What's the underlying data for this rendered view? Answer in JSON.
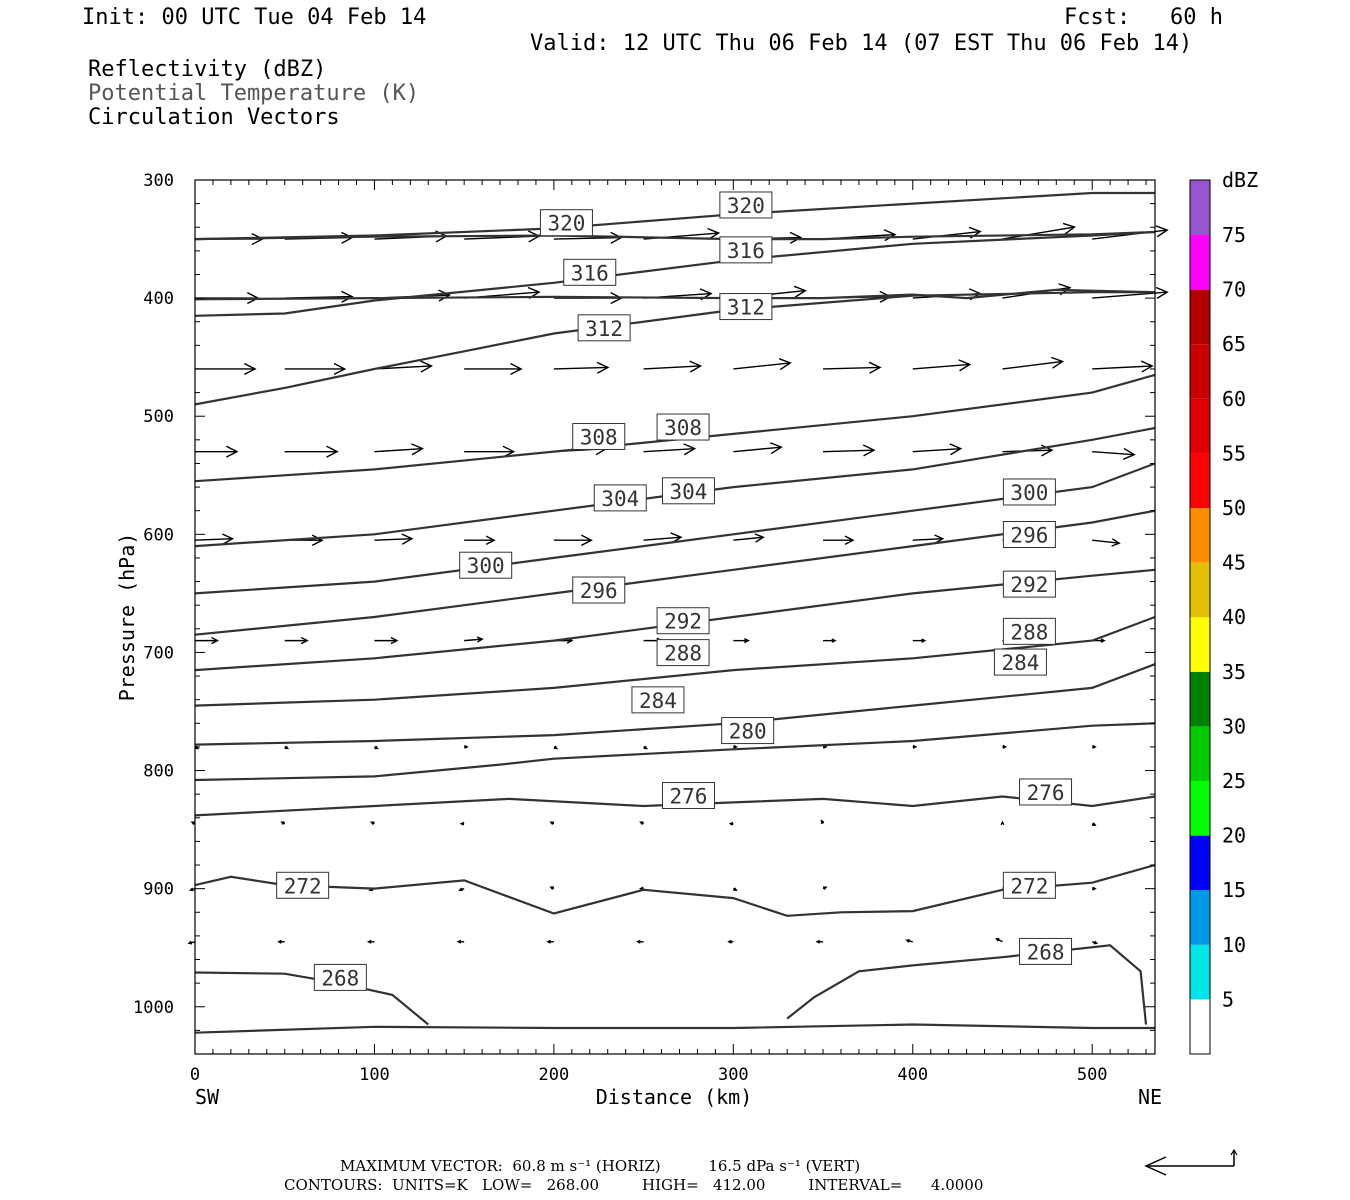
{
  "header": {
    "init": "Init: 00 UTC Tue 04 Feb 14",
    "fcst": "Fcst:   60 h",
    "valid": "Valid: 12 UTC Thu 06 Feb 14 (07 EST Thu 06 Feb 14)"
  },
  "fields": [
    "Reflectivity (dBZ)",
    "Potential Temperature (K)",
    "Circulation Vectors"
  ],
  "colors": {
    "contour": "#333333",
    "frame": "#000000"
  },
  "colorbar": {
    "unit": "dBZ",
    "levels": [
      {
        "label": "5",
        "color": "#00e5e5"
      },
      {
        "label": "10",
        "color": "#0099e5"
      },
      {
        "label": "15",
        "color": "#0000ff"
      },
      {
        "label": "20",
        "color": "#00ff00"
      },
      {
        "label": "25",
        "color": "#00cc00"
      },
      {
        "label": "30",
        "color": "#008000"
      },
      {
        "label": "35",
        "color": "#ffff00"
      },
      {
        "label": "40",
        "color": "#e5bf00"
      },
      {
        "label": "45",
        "color": "#ff8c00"
      },
      {
        "label": "50",
        "color": "#ff0000"
      },
      {
        "label": "55",
        "color": "#e00000"
      },
      {
        "label": "60",
        "color": "#cc0000"
      },
      {
        "label": "65",
        "color": "#b20000"
      },
      {
        "label": "70",
        "color": "#ff00ff"
      },
      {
        "label": "75",
        "color": "#9955cc"
      }
    ]
  },
  "chart_data": {
    "type": "line",
    "xlabel": "Distance (km)",
    "ylabel": "Pressure (hPa)",
    "xlim": [
      0,
      535
    ],
    "ylim": [
      300,
      1040
    ],
    "x_ticks": [
      "0",
      "100",
      "200",
      "300",
      "400",
      "500"
    ],
    "y_ticks": [
      "300",
      "400",
      "500",
      "600",
      "700",
      "800",
      "900",
      "1000"
    ],
    "x_end_labels": {
      "left": "SW",
      "right": "NE"
    },
    "contours": [
      {
        "name": "320",
        "x": [
          0,
          100,
          200,
          300,
          400,
          500,
          535
        ],
        "y": [
          350,
          347,
          341,
          329,
          320,
          311,
          311
        ]
      },
      {
        "name": "316",
        "x": [
          0,
          100,
          200,
          300,
          350,
          400,
          500,
          535
        ],
        "y": [
          350,
          348,
          347,
          350,
          350,
          348,
          346,
          344
        ]
      },
      {
        "name": "316",
        "x": [
          0,
          50,
          100,
          200,
          300,
          400,
          500,
          535
        ],
        "y": [
          415,
          413,
          402,
          387,
          368,
          354,
          347,
          344
        ]
      },
      {
        "name": "312",
        "x": [
          0,
          100,
          200,
          300,
          350,
          400,
          430,
          480,
          535
        ],
        "y": [
          401,
          400,
          399,
          400,
          400,
          397,
          400,
          393,
          395
        ]
      },
      {
        "name": "312",
        "x": [
          0,
          50,
          100,
          150,
          200,
          300,
          400,
          500,
          535
        ],
        "y": [
          490,
          476,
          460,
          445,
          430,
          410,
          398,
          395,
          395
        ]
      },
      {
        "name": "308",
        "x": [
          0,
          100,
          200,
          300,
          400,
          500,
          535
        ],
        "y": [
          555,
          545,
          530,
          515,
          500,
          480,
          465
        ]
      },
      {
        "name": "304",
        "x": [
          0,
          100,
          200,
          300,
          400,
          500,
          535
        ],
        "y": [
          610,
          600,
          580,
          560,
          545,
          520,
          510
        ]
      },
      {
        "name": "300",
        "x": [
          0,
          100,
          200,
          300,
          400,
          500,
          535
        ],
        "y": [
          650,
          640,
          620,
          600,
          580,
          560,
          540
        ]
      },
      {
        "name": "296",
        "x": [
          0,
          100,
          200,
          300,
          400,
          500,
          535
        ],
        "y": [
          685,
          670,
          650,
          630,
          610,
          590,
          580
        ]
      },
      {
        "name": "292",
        "x": [
          0,
          100,
          200,
          300,
          400,
          500,
          535
        ],
        "y": [
          715,
          705,
          690,
          670,
          650,
          635,
          630
        ]
      },
      {
        "name": "288",
        "x": [
          0,
          100,
          200,
          300,
          400,
          500,
          535
        ],
        "y": [
          745,
          740,
          730,
          715,
          705,
          690,
          670
        ]
      },
      {
        "name": "284",
        "x": [
          0,
          100,
          200,
          300,
          400,
          500,
          535
        ],
        "y": [
          778,
          775,
          770,
          760,
          745,
          730,
          710
        ]
      },
      {
        "name": "280",
        "x": [
          0,
          100,
          170,
          200,
          300,
          400,
          500,
          535
        ],
        "y": [
          808,
          805,
          795,
          790,
          782,
          775,
          762,
          760
        ]
      },
      {
        "name": "276",
        "x": [
          0,
          100,
          175,
          250,
          300,
          350,
          400,
          450,
          500,
          535
        ],
        "y": [
          838,
          830,
          824,
          830,
          827,
          824,
          830,
          822,
          830,
          822
        ]
      },
      {
        "name": "272",
        "x": [
          0,
          20,
          50,
          100,
          150,
          200,
          250,
          300,
          330,
          360,
          400,
          450,
          500,
          535
        ],
        "y": [
          897,
          890,
          897,
          900,
          893,
          921,
          901,
          908,
          923,
          920,
          919,
          901,
          895,
          880
        ]
      },
      {
        "name": "268",
        "x": [
          0,
          50,
          80,
          110,
          130
        ],
        "y": [
          971,
          972,
          980,
          990,
          1015
        ]
      },
      {
        "name": "268",
        "x": [
          330,
          345,
          370,
          400,
          450,
          480,
          510,
          527,
          530
        ],
        "y": [
          1010,
          992,
          970,
          965,
          958,
          953,
          948,
          970,
          1015
        ]
      },
      {
        "name": "",
        "x": [
          0,
          100,
          200,
          300,
          400,
          500,
          535
        ],
        "y": [
          1022,
          1017,
          1018,
          1018,
          1015,
          1018,
          1018
        ]
      }
    ],
    "contour_labels": [
      {
        "text": "320",
        "x": 207,
        "y": 337
      },
      {
        "text": "320",
        "x": 307,
        "y": 322
      },
      {
        "text": "316",
        "x": 220,
        "y": 379
      },
      {
        "text": "316",
        "x": 307,
        "y": 360
      },
      {
        "text": "312",
        "x": 228,
        "y": 426
      },
      {
        "text": "312",
        "x": 307,
        "y": 408
      },
      {
        "text": "308",
        "x": 225,
        "y": 518
      },
      {
        "text": "308",
        "x": 272,
        "y": 510
      },
      {
        "text": "304",
        "x": 237,
        "y": 570
      },
      {
        "text": "304",
        "x": 275,
        "y": 564
      },
      {
        "text": "300",
        "x": 162,
        "y": 627
      },
      {
        "text": "300",
        "x": 465,
        "y": 565
      },
      {
        "text": "296",
        "x": 225,
        "y": 648
      },
      {
        "text": "296",
        "x": 465,
        "y": 601
      },
      {
        "text": "292",
        "x": 272,
        "y": 674
      },
      {
        "text": "292",
        "x": 465,
        "y": 643
      },
      {
        "text": "288",
        "x": 272,
        "y": 701
      },
      {
        "text": "288",
        "x": 465,
        "y": 683
      },
      {
        "text": "284",
        "x": 258,
        "y": 741
      },
      {
        "text": "284",
        "x": 460,
        "y": 709
      },
      {
        "text": "280",
        "x": 308,
        "y": 767
      },
      {
        "text": "276",
        "x": 275,
        "y": 822
      },
      {
        "text": "276",
        "x": 474,
        "y": 819
      },
      {
        "text": "272",
        "x": 60,
        "y": 898
      },
      {
        "text": "272",
        "x": 465,
        "y": 898
      },
      {
        "text": "268",
        "x": 81,
        "y": 976
      },
      {
        "text": "268",
        "x": 474,
        "y": 954
      }
    ],
    "vectors": {
      "x": [
        0,
        50,
        100,
        150,
        200,
        250,
        300,
        350,
        400,
        450,
        500
      ],
      "rows": [
        {
          "p": 350,
          "u": [
            45,
            45,
            48,
            50,
            45,
            50,
            45,
            48,
            45,
            48,
            50
          ],
          "w": [
            0,
            1,
            2,
            2,
            1,
            4,
            1,
            3,
            5,
            8,
            6
          ]
        },
        {
          "p": 400,
          "u": [
            42,
            45,
            50,
            50,
            45,
            45,
            48,
            45,
            45,
            45,
            50
          ],
          "w": [
            0,
            1,
            2,
            4,
            0,
            3,
            5,
            1,
            3,
            7,
            4
          ]
        },
        {
          "p": 460,
          "u": [
            40,
            40,
            38,
            38,
            36,
            38,
            38,
            38,
            38,
            40,
            40
          ],
          "w": [
            0,
            0,
            2,
            0,
            1,
            2,
            4,
            1,
            3,
            5,
            2
          ]
        },
        {
          "p": 530,
          "u": [
            28,
            35,
            32,
            33,
            35,
            34,
            32,
            34,
            32,
            33,
            28
          ],
          "w": [
            0,
            0,
            2,
            0,
            2,
            2,
            3,
            1,
            2,
            1,
            -2
          ]
        },
        {
          "p": 605,
          "u": [
            25,
            25,
            25,
            20,
            25,
            25,
            20,
            20,
            20,
            20,
            18
          ],
          "w": [
            1,
            0,
            1,
            0,
            0,
            2,
            2,
            0,
            1,
            -1,
            -2
          ]
        },
        {
          "p": 690,
          "u": [
            15,
            15,
            15,
            12,
            12,
            12,
            10,
            8,
            8,
            7,
            8
          ],
          "w": [
            0,
            0,
            0,
            1,
            0,
            0,
            0,
            0,
            0,
            0,
            0
          ]
        },
        {
          "p": 780,
          "u": [
            2,
            2,
            2,
            2,
            2,
            2,
            2,
            2,
            2,
            2,
            2
          ],
          "w": [
            -1,
            -1,
            -1,
            0,
            -1,
            -1,
            0,
            0,
            0,
            0,
            0
          ]
        },
        {
          "p": 845,
          "u": [
            -2,
            -2,
            -2,
            -2,
            -2,
            -2,
            -2,
            -1,
            0,
            0,
            2
          ],
          "w": [
            1,
            1,
            1,
            0,
            1,
            1,
            0,
            2,
            0,
            1,
            -1
          ]
        },
        {
          "p": 900,
          "u": [
            -3,
            -3,
            -3,
            -3,
            -2,
            -2,
            2,
            2,
            0,
            2,
            2
          ],
          "w": [
            -1,
            -1,
            -1,
            -1,
            1,
            0,
            -1,
            1,
            0,
            0,
            0
          ]
        },
        {
          "p": 945,
          "u": [
            -4,
            -4,
            -4,
            -4,
            -4,
            -4,
            -3,
            -4,
            -4,
            -4,
            3
          ],
          "w": [
            -1,
            0,
            0,
            0,
            0,
            0,
            0,
            0,
            1,
            2,
            -1
          ]
        }
      ]
    }
  },
  "footer": {
    "max_vector": "MAXIMUM VECTOR:  60.8 m s⁻¹ (HORIZ)          16.5 dPa s⁻¹ (VERT)",
    "contours": "CONTOURS:  UNITS=K   LOW=   268.00         HIGH=   412.00         INTERVAL=      4.0000"
  }
}
